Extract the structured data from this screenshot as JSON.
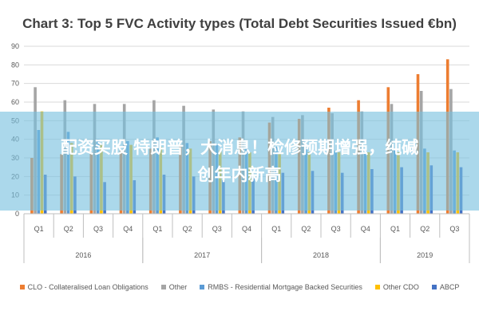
{
  "chart_data": {
    "type": "bar",
    "title": "Chart 3: Top 5 FVC Activity types (Total Debt Securities Issued €bn)",
    "ylim": [
      0,
      90
    ],
    "yticks": [
      0,
      10,
      20,
      30,
      40,
      50,
      60,
      70,
      80,
      90
    ],
    "categories": [
      "Q1",
      "Q2",
      "Q3",
      "Q4",
      "Q1",
      "Q2",
      "Q3",
      "Q4",
      "Q1",
      "Q2",
      "Q3",
      "Q4",
      "Q1",
      "Q2",
      "Q3"
    ],
    "years": [
      {
        "label": "2016",
        "count": 4
      },
      {
        "label": "2017",
        "count": 4
      },
      {
        "label": "2018",
        "count": 4
      },
      {
        "label": "2019",
        "count": 3
      }
    ],
    "series": [
      {
        "name": "CLO - Collateralised Loan Obligations",
        "color": "#ed7d31",
        "values": [
          30,
          32,
          33,
          34,
          35,
          37,
          39,
          41,
          49,
          51,
          57,
          61,
          68,
          75,
          83
        ]
      },
      {
        "name": "Other",
        "color": "#a5a5a5",
        "values": [
          68,
          61,
          59,
          59,
          61,
          58,
          56,
          55,
          52,
          53,
          54,
          55,
          59,
          66,
          67
        ]
      },
      {
        "name": "RMBS - Residential Mortgage Backed Securities",
        "color": "#5b9bd5",
        "values": [
          45,
          44,
          40,
          39,
          41,
          38,
          37,
          35,
          36,
          35,
          34,
          33,
          34,
          35,
          34
        ]
      },
      {
        "name": "Other CDO",
        "color": "#ffc000",
        "values": [
          55,
          38,
          37,
          37,
          36,
          35,
          34,
          33,
          33,
          33,
          33,
          33,
          33,
          33,
          33
        ]
      },
      {
        "name": "ABCP",
        "color": "#4472c4",
        "values": [
          21,
          20,
          17,
          18,
          21,
          20,
          18,
          19,
          22,
          23,
          22,
          24,
          25,
          26,
          25
        ]
      }
    ],
    "grid": true,
    "legend_position": "bottom"
  },
  "overlay": {
    "line1": "配资买股 特朗普，大消息！检修预期增强，纯碱",
    "line2": "创年内新高"
  }
}
